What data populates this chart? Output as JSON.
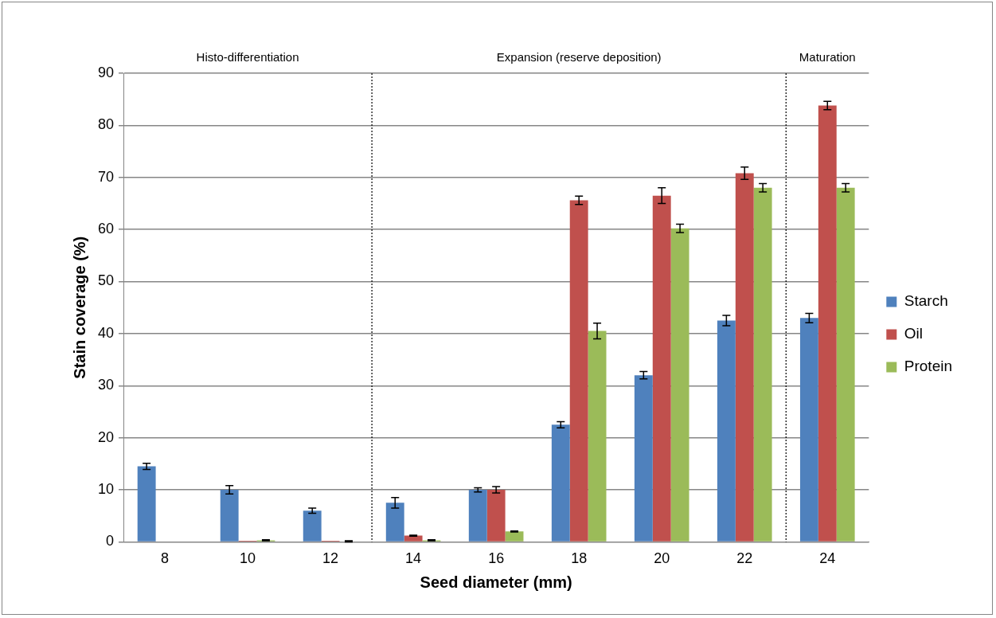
{
  "chart_data": {
    "type": "bar",
    "xlabel": "Seed diameter (mm)",
    "ylabel": "Stain coverage (%)",
    "x": [
      8,
      10,
      12,
      14,
      16,
      18,
      20,
      22,
      24
    ],
    "xlim": [
      7,
      25
    ],
    "xticks": [
      8,
      10,
      12,
      14,
      16,
      18,
      20,
      22,
      24
    ],
    "ylim": [
      0,
      90
    ],
    "yticks": [
      0,
      10,
      20,
      30,
      40,
      50,
      60,
      70,
      80,
      90
    ],
    "grid": "y",
    "legend": "right",
    "series": [
      {
        "name": "Starch",
        "color": "#4f81bd",
        "values": [
          14.5,
          10,
          6,
          7.5,
          10,
          22.5,
          32,
          42.5,
          43
        ],
        "errors": [
          0.6,
          0.8,
          0.5,
          1,
          0.4,
          0.6,
          0.7,
          1,
          0.9
        ]
      },
      {
        "name": "Oil",
        "color": "#c0504d",
        "values": [
          0.1,
          0.2,
          0.2,
          1.2,
          10,
          65.6,
          66.5,
          70.8,
          83.8
        ],
        "errors": [
          null,
          null,
          null,
          0.1,
          0.6,
          0.8,
          1.5,
          1.2,
          0.8
        ]
      },
      {
        "name": "Protein",
        "color": "#9bbb59",
        "values": [
          0,
          0.3,
          0.1,
          0.3,
          2,
          40.5,
          60.2,
          68,
          68
        ],
        "errors": [
          null,
          0.1,
          0.1,
          0.1,
          0.1,
          1.5,
          0.8,
          0.8,
          0.8
        ]
      }
    ],
    "ref_lines": [
      {
        "axis": "x",
        "value": 13,
        "line_style": "dotted",
        "color": "#000000"
      },
      {
        "axis": "x",
        "value": 23,
        "line_style": "dotted",
        "color": "#000000"
      }
    ],
    "annotations": [
      "Histo-differentiation",
      "Expansion (reserve deposition)",
      "Maturation"
    ]
  }
}
